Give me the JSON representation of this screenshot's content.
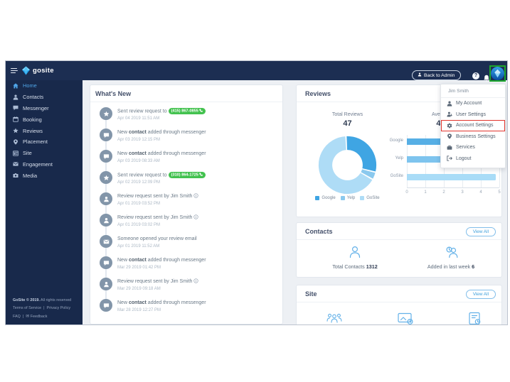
{
  "colors": {
    "navy_header": "#1C2E52",
    "navy_sidebar": "#18294B",
    "active_blue": "#4FA5E8",
    "accent_blue": "#3D9FDB",
    "green_badge": "#43C24F",
    "annotation_red": "#E2342D",
    "annotation_green": "#1CA62C"
  },
  "header": {
    "logo_text": "gosite",
    "back_to_admin_label": "Back to Admin",
    "help_glyph": "?"
  },
  "sidebar": {
    "items": [
      {
        "label": "Home",
        "icon": "home-icon",
        "active": true
      },
      {
        "label": "Contacts",
        "icon": "contacts-icon",
        "active": false
      },
      {
        "label": "Messenger",
        "icon": "messenger-icon",
        "active": false
      },
      {
        "label": "Booking",
        "icon": "booking-icon",
        "active": false
      },
      {
        "label": "Reviews",
        "icon": "reviews-icon",
        "active": false
      },
      {
        "label": "Placement",
        "icon": "placement-icon",
        "active": false
      },
      {
        "label": "Site",
        "icon": "site-icon",
        "active": false
      },
      {
        "label": "Engagement",
        "icon": "engagement-icon",
        "active": false
      },
      {
        "label": "Media",
        "icon": "media-icon",
        "active": false
      }
    ],
    "footer": {
      "copyright_bold": "GoSite © 2019.",
      "copyright_rest": " All rights reserved",
      "links": [
        "Terms of Service",
        "Privacy Policy"
      ],
      "faq": "FAQ",
      "feedback": "Feedback",
      "separator": "|"
    }
  },
  "user_menu": {
    "name": "Jim Smith",
    "items": [
      {
        "label": "My Account",
        "icon": "user-icon",
        "highlighted": false
      },
      {
        "label": "User Settings",
        "icon": "user-settings-icon",
        "highlighted": false
      },
      {
        "label": "Account Settings",
        "icon": "gear-icon",
        "highlighted": true
      },
      {
        "label": "Business Settings",
        "icon": "pin-icon",
        "highlighted": false
      },
      {
        "label": "Services",
        "icon": "briefcase-icon",
        "highlighted": false
      },
      {
        "label": "Logout",
        "icon": "logout-icon",
        "highlighted": false
      }
    ]
  },
  "whats_new": {
    "title": "What's New",
    "items": [
      {
        "icon": "review-request-icon",
        "parts": [
          {
            "t": "Sent review request to ",
            "b": false
          }
        ],
        "badge": "(415) 867-0855",
        "info": false,
        "time": "Apr 04 2019 11:51 AM"
      },
      {
        "icon": "messenger-contact-icon",
        "parts": [
          {
            "t": "New ",
            "b": false
          },
          {
            "t": "contact",
            "b": true
          },
          {
            "t": " added through messenger",
            "b": false
          }
        ],
        "info": false,
        "time": "Apr 03 2019 12:15 PM"
      },
      {
        "icon": "messenger-contact-icon",
        "parts": [
          {
            "t": "New ",
            "b": false
          },
          {
            "t": "contact",
            "b": true
          },
          {
            "t": " added through messenger",
            "b": false
          }
        ],
        "info": false,
        "time": "Apr 03 2019 08:33 AM"
      },
      {
        "icon": "review-request-icon",
        "parts": [
          {
            "t": "Sent review request to ",
            "b": false
          }
        ],
        "badge": "(310) 864-1725",
        "info": false,
        "time": "Apr 02 2019 12:09 PM"
      },
      {
        "icon": "feed-person-icon",
        "parts": [
          {
            "t": "Review request sent by Jim Smith",
            "b": false
          }
        ],
        "info": true,
        "time": "Apr 01 2019 03:52 PM"
      },
      {
        "icon": "feed-person-icon",
        "parts": [
          {
            "t": "Review request sent by Jim Smith",
            "b": false
          }
        ],
        "info": true,
        "time": "Apr 01 2019 03:02 PM"
      },
      {
        "icon": "email-open-icon",
        "parts": [
          {
            "t": "Someone opened your review email",
            "b": false
          }
        ],
        "info": false,
        "time": "Apr 01 2019 11:52 AM"
      },
      {
        "icon": "messenger-contact-icon",
        "parts": [
          {
            "t": "New ",
            "b": false
          },
          {
            "t": "contact",
            "b": true
          },
          {
            "t": " added through messenger",
            "b": false
          }
        ],
        "info": false,
        "time": "Mar 29 2019 01:42 PM"
      },
      {
        "icon": "feed-person-icon",
        "parts": [
          {
            "t": "Review request sent by Jim Smith",
            "b": false
          }
        ],
        "info": true,
        "time": "Mar 29 2019 09:18 AM"
      },
      {
        "icon": "messenger-contact-icon",
        "parts": [
          {
            "t": "New ",
            "b": false
          },
          {
            "t": "contact",
            "b": true
          },
          {
            "t": " added through messenger",
            "b": false
          }
        ],
        "info": false,
        "time": "Mar 28 2019 12:27 PM"
      }
    ]
  },
  "reviews_panel": {
    "title": "Reviews"
  },
  "chart_data": [
    {
      "type": "pie",
      "title": "Total Reviews",
      "total": "47",
      "labels": [
        "Google",
        "Yelp",
        "GoSite"
      ],
      "values": [
        14,
        2,
        31
      ],
      "colors": [
        "#3FA5E3",
        "#8BC9EE",
        "#AEDCF6"
      ],
      "legend_position": "bottom",
      "donut": true
    },
    {
      "type": "bar",
      "orientation": "horizontal",
      "title": "Average Rating",
      "value": "4.6",
      "categories": [
        "Google",
        "Yelp",
        "GoSite"
      ],
      "values": [
        4.5,
        4.0,
        4.8
      ],
      "colors": [
        "#57AFE5",
        "#7EC4EE",
        "#A9DCF7"
      ],
      "xlim": [
        0,
        5
      ],
      "ticks": [
        "0",
        "1",
        "2",
        "3",
        "4",
        "5"
      ],
      "grid": true
    }
  ],
  "contacts_panel": {
    "title": "Contacts",
    "view_all": "View All",
    "total_label": "Total Contacts ",
    "total_value": "1312",
    "added_label": "Added in last week ",
    "added_value": "6"
  },
  "site_panel": {
    "title": "Site",
    "view_all": "View All"
  }
}
